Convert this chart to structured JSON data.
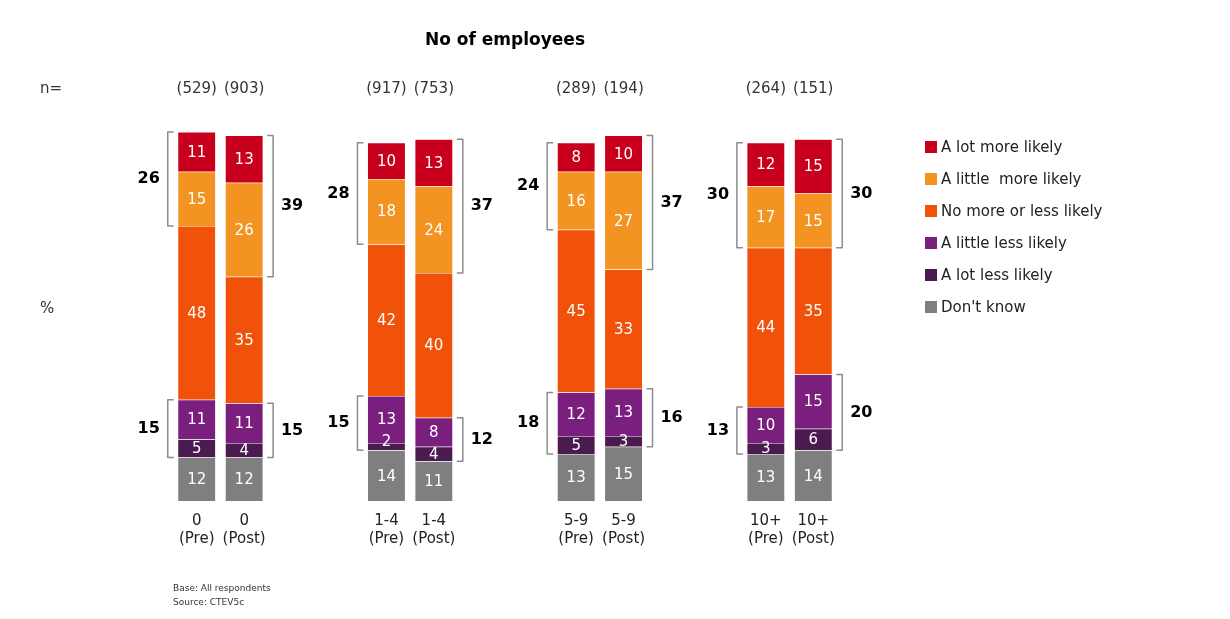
{
  "chart_data": {
    "type": "bar",
    "stacked": true,
    "title": "No of employees",
    "categories": [
      "0 (Pre)",
      "0 (Post)",
      null,
      null,
      "1-4 (Pre)",
      "1-4 (Post)",
      null,
      null,
      "5-9 (Pre)",
      "5-9 (Post)",
      null,
      null,
      "10+ (Pre)",
      "10+ (Post)"
    ],
    "series": [
      {
        "name": "Don't know",
        "color": "#7f7f7f",
        "values": [
          12,
          12,
          null,
          null,
          14,
          11,
          null,
          null,
          13,
          15,
          null,
          null,
          13,
          14
        ]
      },
      {
        "name": "A lot less likely",
        "color": "#4b1a4f",
        "values": [
          5,
          4,
          null,
          null,
          2,
          4,
          null,
          null,
          5,
          3,
          null,
          null,
          3,
          6
        ]
      },
      {
        "name": "A little less likely",
        "color": "#7b1f7f",
        "values": [
          11,
          11,
          null,
          null,
          13,
          8,
          null,
          null,
          12,
          13,
          null,
          null,
          10,
          15
        ]
      },
      {
        "name": "No more or less likely",
        "color": "#ef5208",
        "values": [
          48,
          35,
          null,
          null,
          42,
          40,
          null,
          null,
          45,
          33,
          null,
          null,
          44,
          35
        ]
      },
      {
        "name": "A little  more likely",
        "color": "#f39322",
        "values": [
          15,
          26,
          null,
          null,
          18,
          24,
          null,
          null,
          16,
          27,
          null,
          null,
          17,
          15
        ]
      },
      {
        "name": "A lot more likely",
        "color": "#c8001e",
        "values": [
          11,
          13,
          null,
          null,
          10,
          13,
          null,
          null,
          8,
          10,
          null,
          null,
          12,
          15
        ]
      }
    ],
    "data_labels": true,
    "legend": "right",
    "grid": false,
    "annotations": [
      "n=",
      "%",
      "Base: All respondents",
      "Source: CTEV5c",
      "(529)",
      "(903)",
      "(917)",
      "(753)",
      "(289)",
      "(194)",
      "(264)",
      "(151)",
      "26",
      "15",
      "39",
      "15",
      "28",
      "15",
      "37",
      "12",
      "24",
      "18",
      "37",
      "16",
      "30",
      "13",
      "30",
      "20"
    ]
  }
}
